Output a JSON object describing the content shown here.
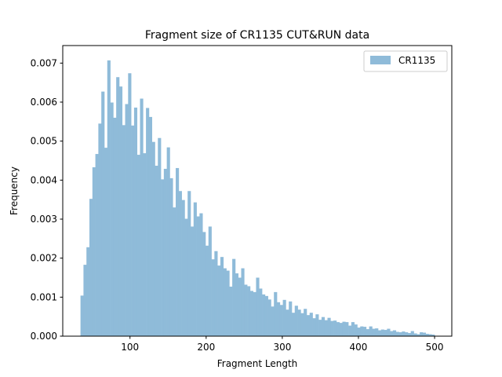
{
  "chart_data": {
    "type": "bar",
    "title": "Fragment size of CR1135 CUT&RUN data",
    "xlabel": "Fragment Length",
    "ylabel": "Frequency",
    "xlim": [
      11.7,
      522.6
    ],
    "ylim": [
      0,
      0.00745
    ],
    "xticks": [
      "100",
      "200",
      "300",
      "400",
      "500"
    ],
    "yticks": [
      "0.000",
      "0.001",
      "0.002",
      "0.003",
      "0.004",
      "0.005",
      "0.006",
      "0.007"
    ],
    "legend": {
      "placement": "top-right",
      "entries": [
        "CR1135"
      ]
    },
    "grid": false,
    "bins": {
      "start": 35,
      "end": 500,
      "series": [
        {
          "name": "CR1135",
          "color": "#8fbbd9",
          "values": [
            0.00104,
            0.00183,
            0.00228,
            0.00352,
            0.00433,
            0.00467,
            0.00545,
            0.00627,
            0.00483,
            0.00707,
            0.00599,
            0.0056,
            0.00664,
            0.0064,
            0.00541,
            0.00595,
            0.00674,
            0.0054,
            0.00586,
            0.00465,
            0.00609,
            0.00469,
            0.00585,
            0.00562,
            0.00498,
            0.00437,
            0.00508,
            0.00402,
            0.00429,
            0.00484,
            0.00405,
            0.0033,
            0.00431,
            0.00372,
            0.00349,
            0.00301,
            0.00372,
            0.00281,
            0.00343,
            0.00307,
            0.00315,
            0.00267,
            0.00232,
            0.00281,
            0.00197,
            0.00218,
            0.00181,
            0.00203,
            0.00174,
            0.00168,
            0.00127,
            0.00198,
            0.00161,
            0.0015,
            0.00174,
            0.00132,
            0.00128,
            0.00116,
            0.00113,
            0.0015,
            0.00122,
            0.00107,
            0.00103,
            0.00094,
            0.00076,
            0.00113,
            0.00087,
            0.0008,
            0.00093,
            0.00068,
            0.00089,
            0.0006,
            0.00078,
            0.00068,
            0.00059,
            0.0007,
            0.00054,
            0.0006,
            0.00046,
            0.00056,
            0.00042,
            0.00049,
            0.00041,
            0.00047,
            0.00039,
            0.0004,
            0.00036,
            0.00034,
            0.00037,
            0.00036,
            0.00027,
            0.00036,
            0.0003,
            0.00022,
            0.00025,
            0.00024,
            0.00018,
            0.00025,
            0.00019,
            0.0002,
            0.00015,
            0.00017,
            0.00016,
            0.00019,
            0.00013,
            0.00015,
            0.00011,
            0.0001,
            0.00012,
            0.0001,
            8e-05,
            0.00013,
            7e-05,
            5e-05,
            0.0001,
            9e-05,
            6e-05,
            5e-05,
            4e-05
          ]
        }
      ]
    }
  }
}
